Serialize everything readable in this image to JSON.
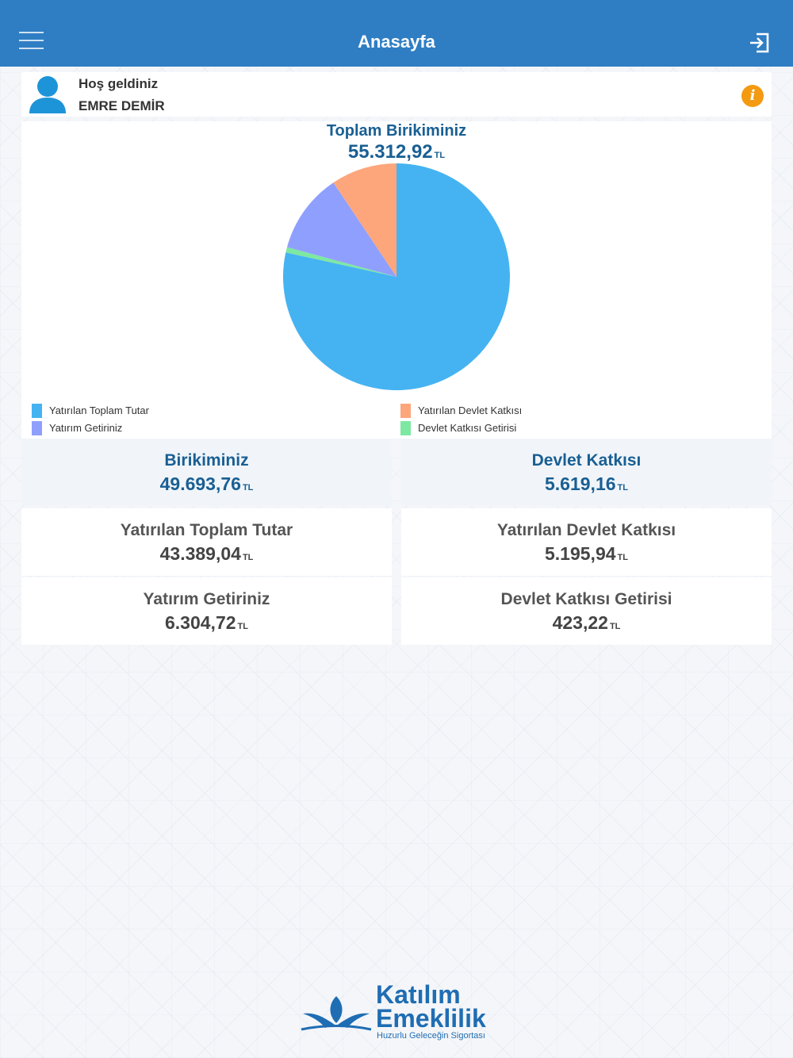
{
  "header": {
    "title": "Anasayfa"
  },
  "welcome": {
    "greeting": "Hoş geldiniz",
    "name": "EMRE DEMİR",
    "info_glyph": "i"
  },
  "summary": {
    "label": "Toplam Birikiminiz",
    "value": "55.312,92",
    "unit": "TL"
  },
  "chart_data": {
    "type": "pie",
    "slices": [
      {
        "name": "Yatırılan Toplam Tutar",
        "value": 43389.04,
        "color": "#45b3f1"
      },
      {
        "name": "Devlet Katkısı Getirisi",
        "value": 423.22,
        "color": "#7de8a2"
      },
      {
        "name": "Yatırım Getiriniz",
        "value": 6304.72,
        "color": "#8f9ffd"
      },
      {
        "name": "Yatırılan Devlet Katkısı",
        "value": 5195.94,
        "color": "#fda67c"
      }
    ],
    "legend": [
      {
        "label": "Yatırılan Toplam Tutar",
        "color": "#45b3f1"
      },
      {
        "label": "Yatırılan Devlet Katkısı",
        "color": "#fda67c"
      },
      {
        "label": "Yatırım Getiriniz",
        "color": "#8f9ffd"
      },
      {
        "label": "Devlet Katkısı Getirisi",
        "color": "#7de8a2"
      }
    ],
    "legend_position": "bottom"
  },
  "stats": {
    "birikim": {
      "label": "Birikiminiz",
      "value": "49.693,76"
    },
    "devlet": {
      "label": "Devlet Katkısı",
      "value": "5.619,16"
    },
    "yatirilan_toplam": {
      "label": "Yatırılan Toplam Tutar",
      "value": "43.389,04"
    },
    "yatirilan_devlet": {
      "label": "Yatırılan Devlet Katkısı",
      "value": "5.195,94"
    },
    "yatirim_getiri": {
      "label": "Yatırım Getiriniz",
      "value": "6.304,72"
    },
    "devlet_getiri": {
      "label": "Devlet Katkısı Getirisi",
      "value": "423,22"
    },
    "unit": "TL"
  },
  "logo": {
    "line1": "Katılım",
    "line2": "Emeklilik",
    "tagline": "Huzurlu Geleceğin Sigortası"
  },
  "colors": {
    "header": "#2f7ec4",
    "accent": "#195f93",
    "info": "#f39a12"
  }
}
